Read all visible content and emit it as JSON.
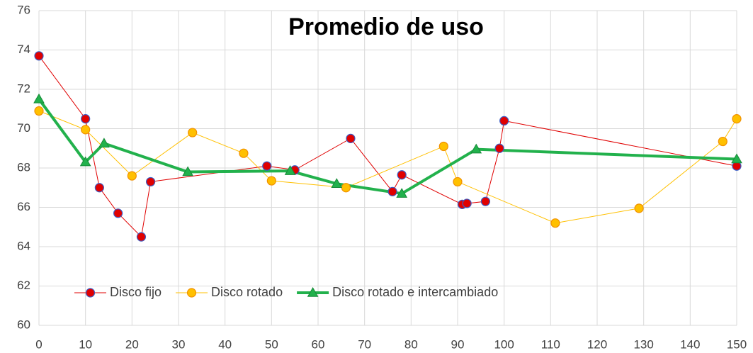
{
  "chart_data": {
    "type": "scatter-line",
    "title": "Promedio de uso",
    "xlim": [
      0,
      150
    ],
    "xticks": [
      0,
      10,
      20,
      30,
      40,
      50,
      60,
      70,
      80,
      90,
      100,
      110,
      120,
      130,
      140,
      150
    ],
    "ylim": [
      60,
      76
    ],
    "yticks": [
      60,
      62,
      64,
      66,
      68,
      70,
      72,
      74,
      76
    ],
    "grid": true,
    "legend": "lower left",
    "series": [
      {
        "name": "Disco fijo",
        "color": "#e00000",
        "marker": "circle",
        "marker_edge": "#3b5cc4",
        "line_width": 1,
        "x": [
          0,
          10,
          13,
          17,
          22,
          24,
          49,
          55,
          67,
          76,
          78,
          91,
          92,
          96,
          99,
          100,
          150
        ],
        "values": [
          73.7,
          70.5,
          67.0,
          65.7,
          64.5,
          67.3,
          68.1,
          67.9,
          69.5,
          66.8,
          67.65,
          66.15,
          66.2,
          66.3,
          69.0,
          70.4,
          68.1
        ]
      },
      {
        "name": "Disco rotado",
        "color": "#ffc000",
        "marker": "circle",
        "marker_edge": "#f09000",
        "line_width": 1,
        "x": [
          0,
          10,
          20,
          33,
          44,
          50,
          66,
          87,
          90,
          111,
          129,
          147,
          150
        ],
        "values": [
          70.9,
          69.95,
          67.6,
          69.8,
          68.75,
          67.35,
          67.0,
          69.1,
          67.3,
          65.2,
          65.95,
          69.35,
          70.5
        ]
      },
      {
        "name": "Disco rotado e intercambiado",
        "color": "#22b14c",
        "marker": "triangle",
        "marker_edge": "#178a38",
        "line_width": 4,
        "x": [
          0,
          10,
          14,
          32,
          54,
          64,
          78,
          94,
          150
        ],
        "values": [
          71.5,
          68.3,
          69.25,
          67.8,
          67.85,
          67.2,
          66.7,
          68.95,
          68.45
        ]
      }
    ]
  }
}
